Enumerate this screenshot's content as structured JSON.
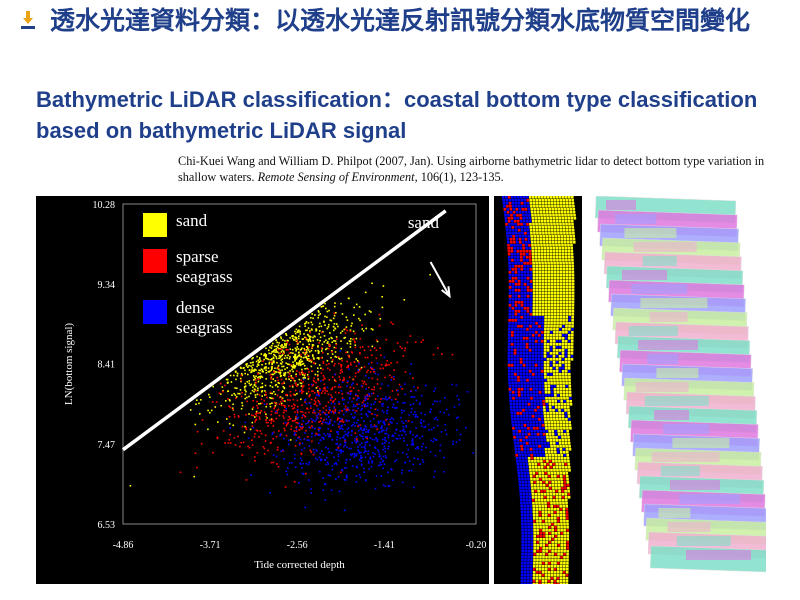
{
  "slide": {
    "title_zh": "透水光達資料分類：以透水光達反射訊號分類水底物質空間變化",
    "title_en": "Bathymetric LiDAR classification：coastal bottom type classification based on bathymetric LiDAR signal",
    "citation": {
      "plain": "Chi-Kuei Wang and William  D. Philpot (2007, Jan). Using airborne bathymetric  lidar to detect bottom type variation  in shallow waters. ",
      "journal": "Remote Sensing of Environment",
      "rest": ", 106(1), 123-135."
    },
    "colors": {
      "title": "#1f3f8a",
      "bullet": "#e8a317"
    },
    "icon": "bullet-arrow-icon"
  },
  "chart_data": {
    "type": "scatter",
    "xlabel": "Tide corrected depth",
    "ylabel": "LN(bottom signal)",
    "xlim": [
      -4.86,
      -0.2
    ],
    "ylim": [
      6.53,
      10.28
    ],
    "x_ticks": [
      "-4.86",
      "-3.71",
      "-2.56",
      "-1.41",
      "-0.20"
    ],
    "y_ticks": [
      "10.28",
      "9.34",
      "8.41",
      "7.47",
      "6.53"
    ],
    "legend_position": "top-left",
    "legend": [
      {
        "name": "sand",
        "color": "#ffff00"
      },
      {
        "name": "sparse seagrass",
        "color": "#ff0000"
      },
      {
        "name": "dense seagrass",
        "color": "#0000ff"
      }
    ],
    "series": [
      {
        "name": "sand",
        "color": "#ffff00",
        "center": [
          -2.75,
          8.5
        ],
        "spread": [
          0.55,
          0.25
        ],
        "angle": 0.42,
        "count": 900
      },
      {
        "name": "sparse seagrass",
        "color": "#ff0000",
        "center": [
          -2.35,
          8.05
        ],
        "spread": [
          0.65,
          0.32
        ],
        "angle": 0.3,
        "count": 650
      },
      {
        "name": "dense seagrass",
        "color": "#0000ff",
        "center": [
          -1.7,
          7.6
        ],
        "spread": [
          0.55,
          0.3
        ],
        "angle": 0.1,
        "count": 750
      }
    ],
    "boundary_line": {
      "from": [
        -4.86,
        7.4
      ],
      "to": [
        -0.6,
        10.2
      ]
    },
    "annotation": {
      "text": "sand",
      "arrow_from": [
        -0.8,
        9.6
      ],
      "arrow_to": [
        -0.55,
        9.2
      ]
    }
  },
  "images": {
    "classified_strip": {
      "colors": [
        "#ffff00",
        "#0000ff",
        "#ff0000"
      ]
    },
    "rgb_mosaic": {
      "colors": [
        "#7fe0c8",
        "#e078e0",
        "#a0a0ff",
        "#c8f0a0",
        "#f0b0d0"
      ]
    }
  }
}
